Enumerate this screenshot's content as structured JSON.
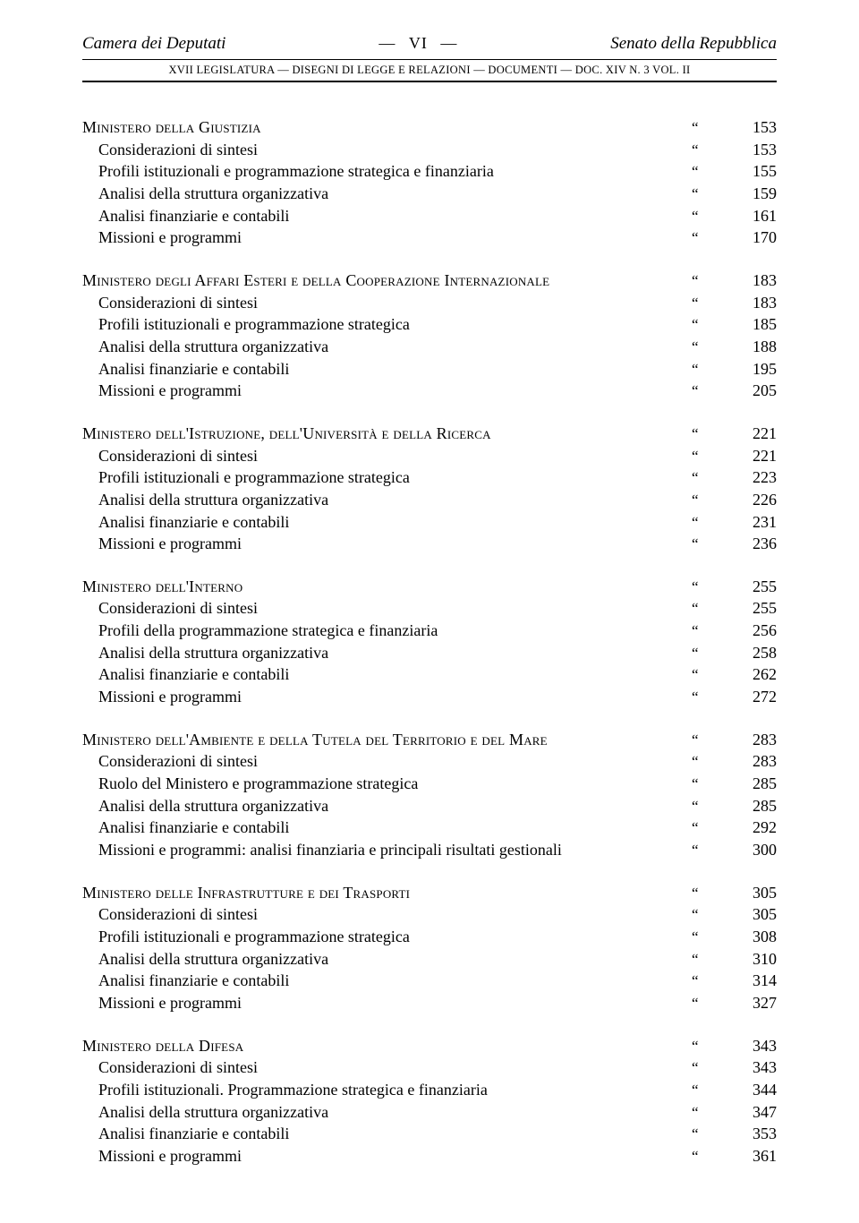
{
  "header": {
    "left": "Camera dei Deputati",
    "center_dash_left": "—",
    "center_page": "VI",
    "center_dash_right": "—",
    "right": "Senato della Repubblica",
    "sub": "XVII  LEGISLATURA  —  DISEGNI  DI  LEGGE  E  RELAZIONI  —  DOCUMENTI  —  DOC.  XIV  N.  3  VOL.  II"
  },
  "quote": "“",
  "sections": [
    {
      "title": "Ministero della Giustizia",
      "title_page": "153",
      "items": [
        {
          "label": "Considerazioni di sintesi",
          "page": "153"
        },
        {
          "label": "Profili istituzionali e programmazione strategica e finanziaria",
          "page": "155"
        },
        {
          "label": "Analisi della struttura organizzativa",
          "page": "159"
        },
        {
          "label": "Analisi finanziarie e contabili",
          "page": "161"
        },
        {
          "label": "Missioni e programmi",
          "page": "170"
        }
      ]
    },
    {
      "title": "Ministero degli Affari Esteri e della Cooperazione Internazionale",
      "title_page": "183",
      "items": [
        {
          "label": "Considerazioni di sintesi",
          "page": "183"
        },
        {
          "label": "Profili istituzionali e programmazione strategica",
          "page": "185"
        },
        {
          "label": "Analisi della struttura organizzativa",
          "page": "188"
        },
        {
          "label": "Analisi finanziarie e contabili",
          "page": "195"
        },
        {
          "label": "Missioni e programmi",
          "page": "205"
        }
      ]
    },
    {
      "title": "Ministero dell'Istruzione, dell'Università e della Ricerca",
      "title_page": "221",
      "items": [
        {
          "label": "Considerazioni di sintesi",
          "page": "221"
        },
        {
          "label": "Profili istituzionali e programmazione strategica",
          "page": "223"
        },
        {
          "label": "Analisi della struttura organizzativa",
          "page": "226"
        },
        {
          "label": "Analisi finanziarie e contabili",
          "page": "231"
        },
        {
          "label": "Missioni e programmi",
          "page": "236"
        }
      ]
    },
    {
      "title": "Ministero dell'Interno",
      "title_page": "255",
      "items": [
        {
          "label": "Considerazioni di sintesi",
          "page": "255"
        },
        {
          "label": "Profili della programmazione strategica e finanziaria",
          "page": "256"
        },
        {
          "label": "Analisi della struttura organizzativa",
          "page": "258"
        },
        {
          "label": "Analisi finanziarie e contabili",
          "page": "262"
        },
        {
          "label": "Missioni e programmi",
          "page": "272"
        }
      ]
    },
    {
      "title": "Ministero dell'Ambiente e della Tutela del Territorio e del Mare",
      "title_page": "283",
      "items": [
        {
          "label": "Considerazioni di sintesi",
          "page": "283"
        },
        {
          "label": "Ruolo del Ministero e programmazione strategica",
          "page": "285"
        },
        {
          "label": "Analisi della struttura organizzativa",
          "page": "285"
        },
        {
          "label": "Analisi finanziarie e contabili",
          "page": "292"
        },
        {
          "label": "Missioni e programmi: analisi finanziaria e principali risultati gestionali",
          "page": "300"
        }
      ]
    },
    {
      "title": "Ministero delle Infrastrutture e dei Trasporti",
      "title_page": "305",
      "items": [
        {
          "label": "Considerazioni di sintesi",
          "page": "305"
        },
        {
          "label": "Profili istituzionali e programmazione strategica",
          "page": "308"
        },
        {
          "label": "Analisi della struttura organizzativa",
          "page": "310"
        },
        {
          "label": "Analisi finanziarie e contabili",
          "page": "314"
        },
        {
          "label": "Missioni e programmi",
          "page": "327"
        }
      ]
    },
    {
      "title": "Ministero della Difesa",
      "title_page": "343",
      "items": [
        {
          "label": "Considerazioni di sintesi",
          "page": "343"
        },
        {
          "label": "Profili istituzionali. Programmazione strategica e finanziaria",
          "page": "344"
        },
        {
          "label": "Analisi della struttura organizzativa",
          "page": "347"
        },
        {
          "label": "Analisi finanziarie e contabili",
          "page": "353"
        },
        {
          "label": "Missioni e programmi",
          "page": "361"
        }
      ]
    }
  ]
}
